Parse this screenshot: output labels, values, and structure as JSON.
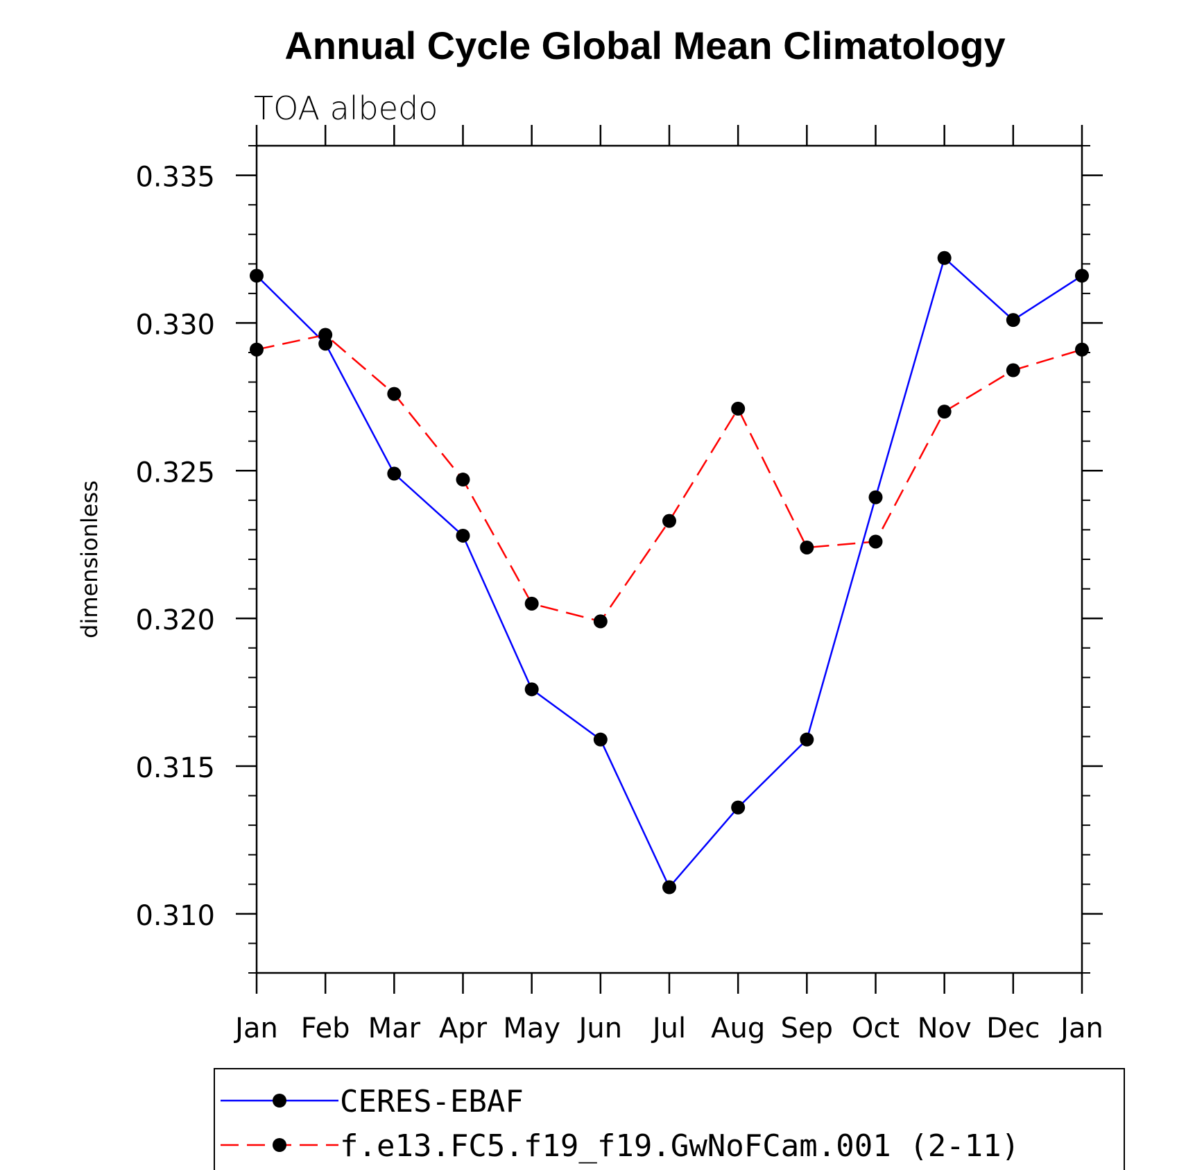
{
  "chart_data": {
    "type": "line",
    "title": "Annual Cycle Global Mean Climatology",
    "subtitle": "TOA albedo",
    "xlabel": "",
    "ylabel": "dimensionless",
    "categories": [
      "Jan",
      "Feb",
      "Mar",
      "Apr",
      "May",
      "Jun",
      "Jul",
      "Aug",
      "Sep",
      "Oct",
      "Nov",
      "Dec",
      "Jan"
    ],
    "ylim": [
      0.308,
      0.336
    ],
    "yticks": [
      "0.310",
      "0.315",
      "0.320",
      "0.325",
      "0.330",
      "0.335"
    ],
    "ytick_values": [
      0.31,
      0.315,
      0.32,
      0.325,
      0.33,
      0.335
    ],
    "grid": false,
    "legend_position": "bottom",
    "series": [
      {
        "name": "CERES-EBAF",
        "color": "#0000ff",
        "line_style": "solid",
        "marker": "filled-circle",
        "values": [
          0.3316,
          0.3293,
          0.3249,
          0.3228,
          0.3176,
          0.3159,
          0.3109,
          0.3136,
          0.3159,
          0.3241,
          0.3322,
          0.3301,
          0.3316
        ]
      },
      {
        "name": "f.e13.FC5.f19_f19.GwNoFCam.001 (2-11)",
        "color": "#ff0000",
        "line_style": "dashed",
        "marker": "filled-circle",
        "values": [
          0.3291,
          0.3296,
          0.3276,
          0.3247,
          0.3205,
          0.3199,
          0.3233,
          0.3271,
          0.3224,
          0.3226,
          0.327,
          0.3284,
          0.3291
        ]
      }
    ]
  }
}
